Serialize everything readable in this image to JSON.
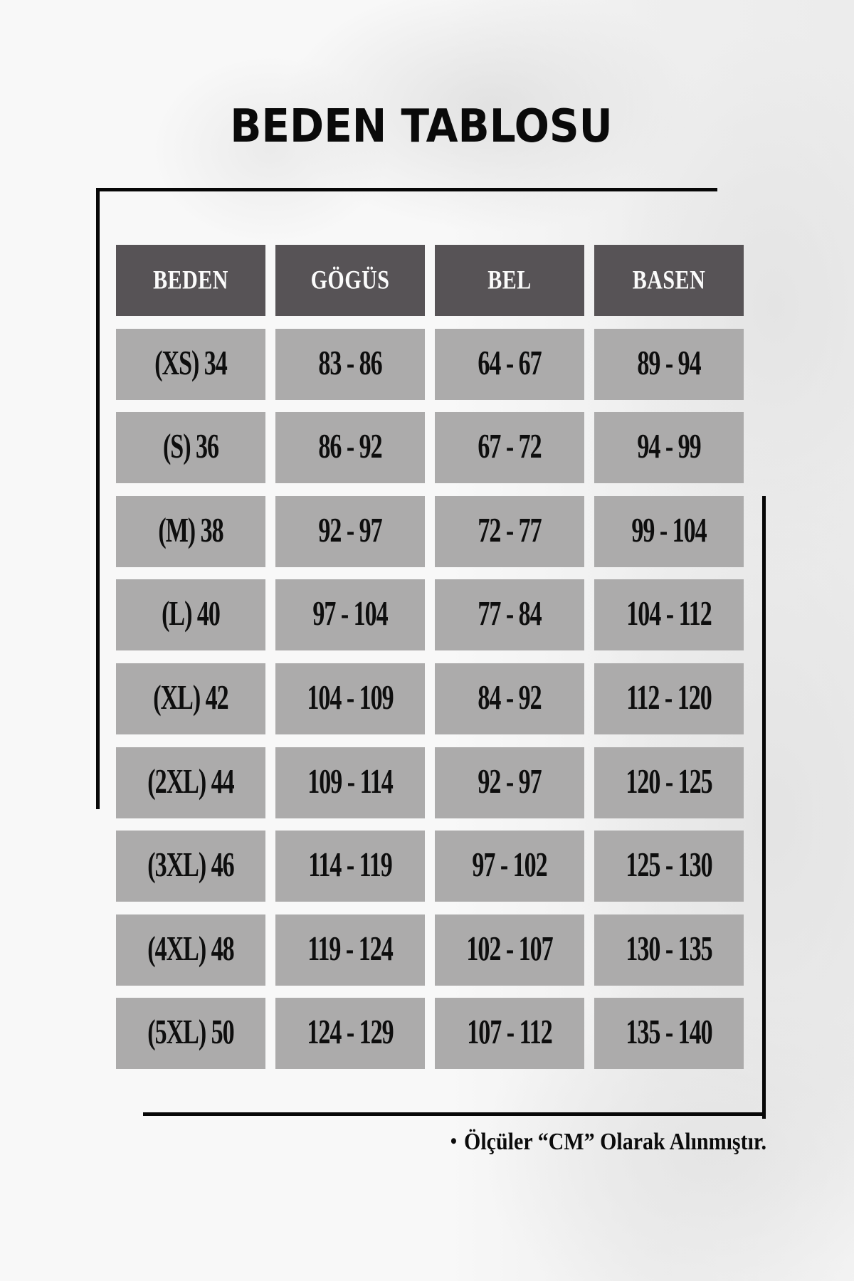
{
  "chart_data": {
    "type": "table",
    "title": "BEDEN TABLOSU",
    "columns": [
      "BEDEN",
      "GÖGÜS",
      "BEL",
      "BASEN"
    ],
    "rows": [
      [
        "(XS) 34",
        "83 - 86",
        "64 - 67",
        "89 - 94"
      ],
      [
        "(S) 36",
        "86 - 92",
        "67 - 72",
        "94 - 99"
      ],
      [
        "(M) 38",
        "92 - 97",
        "72 - 77",
        "99 - 104"
      ],
      [
        "(L) 40",
        "97 - 104",
        "77 - 84",
        "104 - 112"
      ],
      [
        "(XL) 42",
        "104 - 109",
        "84 - 92",
        "112 - 120"
      ],
      [
        "(2XL) 44",
        "109 - 114",
        "92 - 97",
        "120 - 125"
      ],
      [
        "(3XL) 46",
        "114 - 119",
        "97 - 102",
        "125 - 130"
      ],
      [
        "(4XL) 48",
        "119 - 124",
        "102 - 107",
        "130 - 135"
      ],
      [
        "(5XL) 50",
        "124 - 129",
        "107 - 112",
        "135 - 140"
      ]
    ],
    "layout_hints": {
      "header_row": true,
      "grid": "separated-cells",
      "units": "cm"
    }
  },
  "ui": {
    "note_bullet": "•",
    "note_text": "Ölçüler “CM” Olarak Alınmıştır."
  },
  "colors": {
    "page_background": "#f8f8f8",
    "header_cell_bg": "#575356",
    "header_cell_text": "#fbfbfb",
    "data_cell_bg": "#acabab",
    "data_cell_text": "#0e0e0e",
    "frame_line": "#070707"
  }
}
